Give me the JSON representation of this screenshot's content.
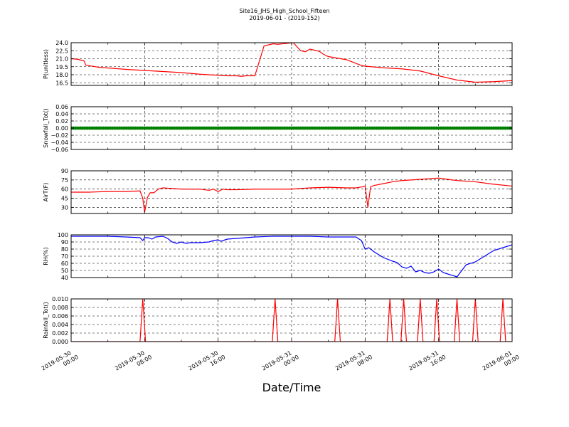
{
  "figure": {
    "title": "Site16_JHS_High_School_Fifteen",
    "subtitle": "2019-06-01 - (2019-152)",
    "xlabel": "Date/Time",
    "x_ticks": [
      {
        "line1": "2019-05-30",
        "line2": "00:00"
      },
      {
        "line1": "2019-05-30",
        "line2": "08:00"
      },
      {
        "line1": "2019-05-30",
        "line2": "16:00"
      },
      {
        "line1": "2019-05-31",
        "line2": "00:00"
      },
      {
        "line1": "2019-05-31",
        "line2": "08:00"
      },
      {
        "line1": "2019-05-31",
        "line2": "16:00"
      },
      {
        "line1": "2019-06-01",
        "line2": "00:00"
      }
    ]
  },
  "chart_data": [
    {
      "type": "line",
      "ylabel": "P(unitless)",
      "color": "#ff0000",
      "ylim": [
        16.0,
        24.0
      ],
      "yticks": [
        "16.5",
        "18.0",
        "19.5",
        "21.0",
        "22.5",
        "24.0"
      ],
      "ytick_values": [
        16.5,
        18.0,
        19.5,
        21.0,
        22.5,
        24.0
      ],
      "xlim_hours": [
        0,
        48
      ],
      "grid": true,
      "series": [
        {
          "x_hours": [
            0,
            0.7,
            1.4,
            1.6,
            3.0,
            6.0,
            8.0,
            10.0,
            12.0,
            14.0,
            16.0,
            17.0,
            18.0,
            18.5,
            19.0,
            20.0,
            21.0,
            22.0,
            22.5,
            23.0,
            23.6,
            24.2,
            24.6,
            25.0,
            25.5,
            26.0,
            27.0,
            27.5,
            28.0,
            30.0,
            31.5,
            32.0,
            34.0,
            36.0,
            38.0,
            40.0,
            42.0,
            44.0,
            46.0,
            48.0
          ],
          "values": [
            21.0,
            20.9,
            20.6,
            19.8,
            19.4,
            19.0,
            18.8,
            18.6,
            18.4,
            18.1,
            17.9,
            17.8,
            17.8,
            17.7,
            17.8,
            17.8,
            23.4,
            23.8,
            23.7,
            23.8,
            23.9,
            24.0,
            23.2,
            22.5,
            22.3,
            22.8,
            22.4,
            21.8,
            21.4,
            20.8,
            19.8,
            19.6,
            19.3,
            19.1,
            18.7,
            17.8,
            17.0,
            16.6,
            16.7,
            16.9
          ]
        }
      ]
    },
    {
      "type": "scatter",
      "ylabel": "Snowfall_Tot()",
      "color": "#008000",
      "ylim": [
        -0.06,
        0.06
      ],
      "yticks": [
        "0.06",
        "0.04",
        "0.02",
        "0.00",
        "−0.02",
        "−0.04",
        "−0.06"
      ],
      "ytick_values": [
        0.06,
        0.04,
        0.02,
        0.0,
        -0.02,
        -0.04,
        -0.06
      ],
      "xlim_hours": [
        0,
        48
      ],
      "grid": true,
      "series": [
        {
          "x_hours": "every 15 minutes from 0 to 48",
          "values": 0
        }
      ]
    },
    {
      "type": "line",
      "ylabel": "AirT(F)",
      "color": "#ff0000",
      "ylim": [
        20,
        90
      ],
      "yticks": [
        "90",
        "75",
        "60",
        "45",
        "30"
      ],
      "ytick_values": [
        90,
        75,
        60,
        45,
        30
      ],
      "xlim_hours": [
        0,
        48
      ],
      "grid": true,
      "series": [
        {
          "x_hours": [
            0,
            2,
            4,
            6,
            7.5,
            7.8,
            8.0,
            8.3,
            8.6,
            9.0,
            9.5,
            10.0,
            12.0,
            14.0,
            15.0,
            15.5,
            16.0,
            16.5,
            17.0,
            18.0,
            20.0,
            22.0,
            24.0,
            26.0,
            28.0,
            30.0,
            31.0,
            31.8,
            32.0,
            32.3,
            32.6,
            33.0,
            34.0,
            35.0,
            36.0,
            38.0,
            39.0,
            40.0,
            41.0,
            42.0,
            44.0,
            46.0,
            48.0
          ],
          "values": [
            55,
            55,
            56,
            56,
            57,
            45,
            22,
            46,
            54,
            54,
            60,
            62,
            60,
            60,
            58,
            60,
            56,
            60,
            59,
            59,
            60,
            60,
            60,
            62,
            63,
            62,
            62,
            64,
            65,
            30,
            64,
            66,
            69,
            72,
            74,
            76,
            77,
            78,
            76,
            74,
            72,
            68,
            65
          ]
        }
      ]
    },
    {
      "type": "line",
      "ylabel": "RH(%)",
      "color": "#0000ff",
      "ylim": [
        40,
        100
      ],
      "yticks": [
        "100",
        "90",
        "80",
        "70",
        "60",
        "50",
        "40"
      ],
      "ytick_values": [
        100,
        90,
        80,
        70,
        60,
        50,
        40
      ],
      "xlim_hours": [
        0,
        48
      ],
      "grid": true,
      "series": [
        {
          "x_hours": [
            0,
            2,
            4,
            6,
            7.5,
            7.8,
            8.0,
            8.4,
            8.8,
            9.2,
            10.0,
            10.5,
            11.0,
            11.5,
            12.0,
            12.5,
            13.0,
            14.0,
            15.0,
            15.5,
            16.0,
            16.3,
            17.0,
            18.0,
            19.0,
            20.0,
            22.0,
            24.0,
            26.0,
            28.0,
            30.0,
            31.0,
            31.6,
            32.0,
            32.4,
            33.0,
            34.0,
            35.0,
            35.5,
            36.0,
            36.5,
            37.0,
            37.5,
            38.0,
            38.5,
            39.0,
            39.5,
            40.0,
            40.5,
            41.0,
            42.0,
            43.0,
            44.0,
            45.0,
            46.0,
            47.0,
            48.0
          ],
          "values": [
            98,
            98,
            98,
            97,
            96,
            92,
            96,
            96,
            94,
            97,
            98,
            95,
            90,
            88,
            90,
            88,
            89,
            89,
            90,
            92,
            93,
            91,
            94,
            95,
            96,
            97,
            98,
            98,
            98,
            97,
            97,
            97,
            92,
            80,
            82,
            76,
            68,
            63,
            61,
            55,
            53,
            56,
            48,
            50,
            47,
            46,
            48,
            52,
            47,
            45,
            41,
            58,
            62,
            70,
            78,
            82,
            86
          ]
        }
      ]
    },
    {
      "type": "line",
      "ylabel": "Rainfall_Tot()",
      "color": "#ff0000",
      "ylim": [
        0.0,
        0.01
      ],
      "yticks": [
        "0.010",
        "0.008",
        "0.006",
        "0.004",
        "0.002",
        "0.000"
      ],
      "ytick_values": [
        0.01,
        0.008,
        0.006,
        0.004,
        0.002,
        0.0
      ],
      "xlim_hours": [
        0,
        48
      ],
      "grid": true,
      "series": [
        {
          "spike_hours": [
            7.8,
            22.2,
            29.0,
            34.7,
            36.2,
            38.0,
            39.8,
            42.0,
            44.0,
            47.0
          ],
          "spike_value": 0.01,
          "baseline": 0.0
        }
      ]
    }
  ]
}
